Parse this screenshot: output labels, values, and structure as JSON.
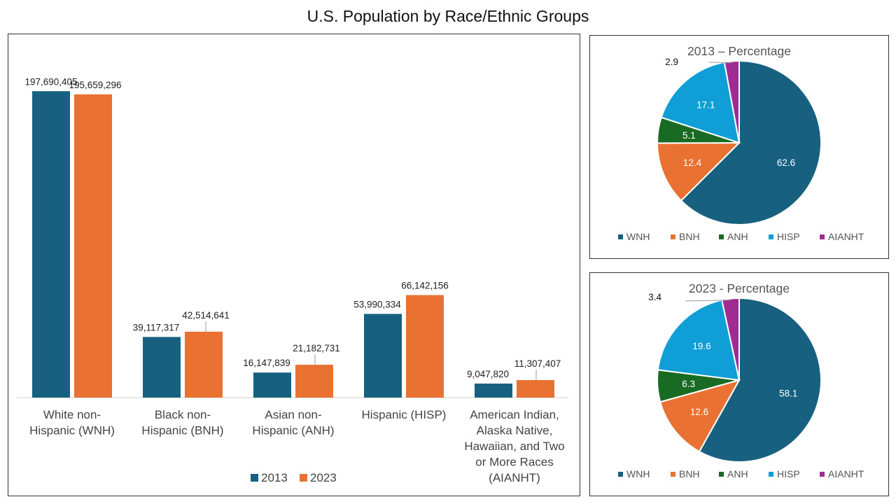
{
  "title": "U.S. Population by Race/Ethnic Groups",
  "colors": {
    "s2013": "#17607f",
    "s2023": "#e97131",
    "WNH": "#17607f",
    "BNH": "#e97131",
    "ANH": "#196b24",
    "HISP": "#0f9ed5",
    "AIANHT": "#a02b93"
  },
  "chart_data": [
    {
      "type": "bar",
      "title": "U.S. Population by Race/Ethnic Groups",
      "categories": [
        [
          "White non-",
          "Hispanic (WNH)"
        ],
        [
          "Black non-",
          "Hispanic (BNH)"
        ],
        [
          "Asian non-",
          "Hispanic (ANH)"
        ],
        [
          "Hispanic (HISP)"
        ],
        [
          "American Indian,",
          "Alaska Native,",
          "Hawaiian, and Two",
          "or More Races",
          "(AIANHT)"
        ]
      ],
      "series": [
        {
          "name": "2013",
          "values": [
            197690405,
            39117317,
            16147839,
            53990334,
            9047820
          ],
          "labels": [
            "197,690,405",
            "39,117,317",
            "16,147,839",
            "53,990,334",
            "9,047,820"
          ]
        },
        {
          "name": "2023",
          "values": [
            195659296,
            42514641,
            21182731,
            66142156,
            11307407
          ],
          "labels": [
            "195,659,296",
            "42,514,641",
            "21,182,731",
            "66,142,156",
            "11,307,407"
          ]
        }
      ],
      "ylim": [
        0,
        210000000
      ],
      "grid": false,
      "legend": "bottom"
    },
    {
      "type": "pie",
      "title": "2013 – Percentage",
      "labels": [
        "WNH",
        "BNH",
        "ANH",
        "HISP",
        "AIANHT"
      ],
      "values": [
        62.6,
        12.4,
        5.1,
        17.1,
        2.9
      ],
      "value_labels": [
        "62.6",
        "12.4",
        "5.1",
        "17.1",
        "2.9"
      ],
      "legend": "bottom"
    },
    {
      "type": "pie",
      "title": "2023 - Percentage",
      "labels": [
        "WNH",
        "BNH",
        "ANH",
        "HISP",
        "AIANHT"
      ],
      "values": [
        58.1,
        12.6,
        6.3,
        19.6,
        3.4
      ],
      "value_labels": [
        "58.1",
        "12.6",
        "6.3",
        "19.6",
        "3.4"
      ],
      "legend": "bottom"
    }
  ]
}
